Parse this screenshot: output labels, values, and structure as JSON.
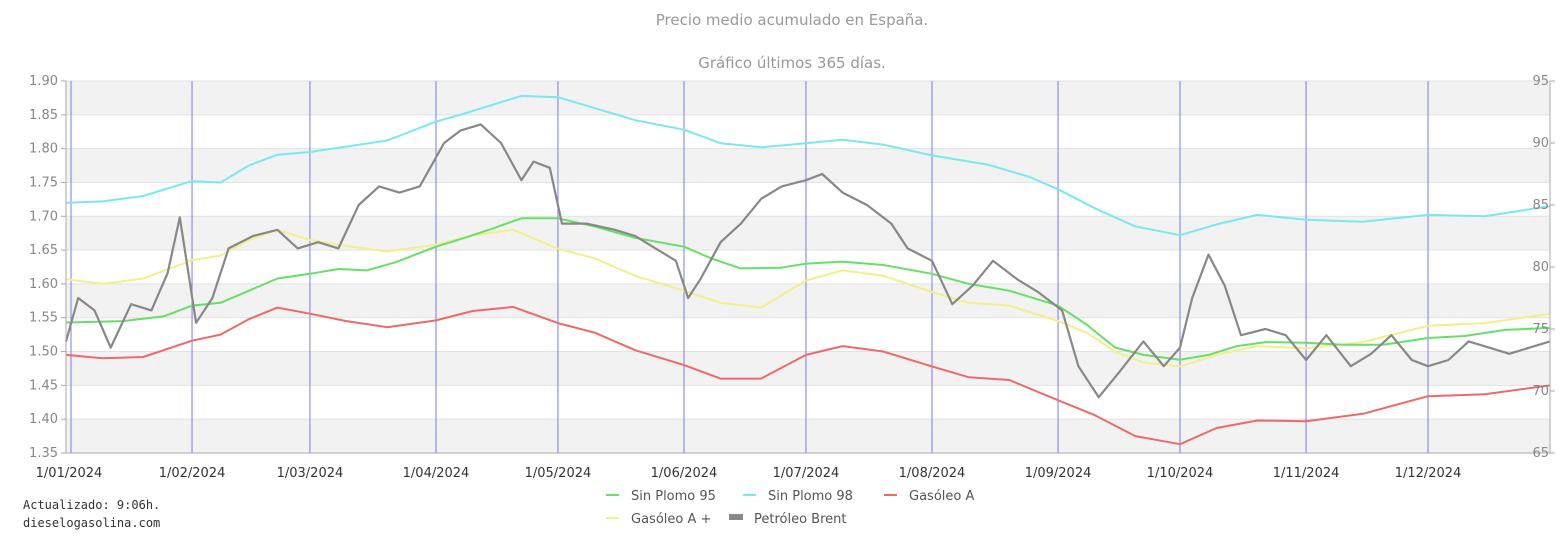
{
  "chart_data": {
    "type": "line",
    "title": "Precio medio acumulado en España.",
    "subtitle": "Gráfico últimos 365 días.",
    "y_left": {
      "min": 1.35,
      "max": 1.9,
      "step": 0.05,
      "ticks": [
        "1.35",
        "1.40",
        "1.45",
        "1.50",
        "1.55",
        "1.60",
        "1.65",
        "1.70",
        "1.75",
        "1.80",
        "1.85",
        "1.90"
      ]
    },
    "y_right": {
      "min": 65,
      "max": 95,
      "step": 5,
      "ticks": [
        "65",
        "70",
        "75",
        "80",
        "85",
        "90",
        "95"
      ]
    },
    "x": {
      "start": "2024-01-01",
      "end": "2024-12-31",
      "ticks": [
        {
          "label": "1/01/2024",
          "date": "2024-01-01"
        },
        {
          "label": "1/02/2024",
          "date": "2024-02-01"
        },
        {
          "label": "1/03/2024",
          "date": "2024-03-01"
        },
        {
          "label": "1/04/2024",
          "date": "2024-04-01"
        },
        {
          "label": "1/05/2024",
          "date": "2024-05-01"
        },
        {
          "label": "1/06/2024",
          "date": "2024-06-01"
        },
        {
          "label": "1/07/2024",
          "date": "2024-07-01"
        },
        {
          "label": "1/08/2024",
          "date": "2024-08-01"
        },
        {
          "label": "1/09/2024",
          "date": "2024-09-01"
        },
        {
          "label": "1/10/2024",
          "date": "2024-10-01"
        },
        {
          "label": "1/11/2024",
          "date": "2024-11-01"
        },
        {
          "label": "1/12/2024",
          "date": "2024-12-01"
        }
      ]
    },
    "grid": true,
    "legend_position": "bottom",
    "series": [
      {
        "name": "Sin Plomo 95",
        "color": "#66e066",
        "axis": "left",
        "points": [
          [
            "2024-01-01",
            1.543
          ],
          [
            "2024-01-15",
            1.545
          ],
          [
            "2024-01-25",
            1.552
          ],
          [
            "2024-02-01",
            1.568
          ],
          [
            "2024-02-08",
            1.572
          ],
          [
            "2024-02-15",
            1.59
          ],
          [
            "2024-02-22",
            1.608
          ],
          [
            "2024-03-01",
            1.615
          ],
          [
            "2024-03-08",
            1.622
          ],
          [
            "2024-03-15",
            1.62
          ],
          [
            "2024-03-22",
            1.632
          ],
          [
            "2024-04-01",
            1.655
          ],
          [
            "2024-04-08",
            1.668
          ],
          [
            "2024-04-15",
            1.682
          ],
          [
            "2024-04-22",
            1.697
          ],
          [
            "2024-05-01",
            1.697
          ],
          [
            "2024-05-10",
            1.685
          ],
          [
            "2024-05-20",
            1.668
          ],
          [
            "2024-06-01",
            1.655
          ],
          [
            "2024-06-08",
            1.637
          ],
          [
            "2024-06-15",
            1.623
          ],
          [
            "2024-06-25",
            1.624
          ],
          [
            "2024-07-01",
            1.63
          ],
          [
            "2024-07-10",
            1.633
          ],
          [
            "2024-07-20",
            1.628
          ],
          [
            "2024-08-01",
            1.615
          ],
          [
            "2024-08-10",
            1.6
          ],
          [
            "2024-08-20",
            1.59
          ],
          [
            "2024-09-01",
            1.568
          ],
          [
            "2024-09-08",
            1.54
          ],
          [
            "2024-09-15",
            1.506
          ],
          [
            "2024-09-22",
            1.495
          ],
          [
            "2024-10-01",
            1.488
          ],
          [
            "2024-10-08",
            1.495
          ],
          [
            "2024-10-15",
            1.508
          ],
          [
            "2024-10-22",
            1.514
          ],
          [
            "2024-11-01",
            1.513
          ],
          [
            "2024-11-10",
            1.51
          ],
          [
            "2024-11-20",
            1.51
          ],
          [
            "2024-12-01",
            1.52
          ],
          [
            "2024-12-10",
            1.523
          ],
          [
            "2024-12-20",
            1.532
          ],
          [
            "2024-12-31",
            1.535
          ]
        ]
      },
      {
        "name": "Sin Plomo 98",
        "color": "#7ae8f0",
        "axis": "left",
        "points": [
          [
            "2024-01-01",
            1.72
          ],
          [
            "2024-01-10",
            1.722
          ],
          [
            "2024-01-20",
            1.73
          ],
          [
            "2024-02-01",
            1.752
          ],
          [
            "2024-02-08",
            1.75
          ],
          [
            "2024-02-15",
            1.775
          ],
          [
            "2024-02-22",
            1.791
          ],
          [
            "2024-03-01",
            1.795
          ],
          [
            "2024-03-10",
            1.803
          ],
          [
            "2024-03-20",
            1.812
          ],
          [
            "2024-04-01",
            1.84
          ],
          [
            "2024-04-08",
            1.852
          ],
          [
            "2024-04-15",
            1.865
          ],
          [
            "2024-04-22",
            1.878
          ],
          [
            "2024-05-01",
            1.876
          ],
          [
            "2024-05-10",
            1.86
          ],
          [
            "2024-05-20",
            1.842
          ],
          [
            "2024-06-01",
            1.828
          ],
          [
            "2024-06-10",
            1.808
          ],
          [
            "2024-06-20",
            1.802
          ],
          [
            "2024-07-01",
            1.808
          ],
          [
            "2024-07-10",
            1.813
          ],
          [
            "2024-07-20",
            1.806
          ],
          [
            "2024-08-01",
            1.79
          ],
          [
            "2024-08-15",
            1.776
          ],
          [
            "2024-08-25",
            1.758
          ],
          [
            "2024-09-01",
            1.74
          ],
          [
            "2024-09-10",
            1.712
          ],
          [
            "2024-09-20",
            1.685
          ],
          [
            "2024-10-01",
            1.672
          ],
          [
            "2024-10-10",
            1.688
          ],
          [
            "2024-10-20",
            1.702
          ],
          [
            "2024-11-01",
            1.695
          ],
          [
            "2024-11-15",
            1.692
          ],
          [
            "2024-12-01",
            1.702
          ],
          [
            "2024-12-15",
            1.7
          ],
          [
            "2024-12-31",
            1.715
          ]
        ]
      },
      {
        "name": "Gasóleo A",
        "color": "#ee6a6a",
        "axis": "left",
        "points": [
          [
            "2024-01-01",
            1.495
          ],
          [
            "2024-01-10",
            1.49
          ],
          [
            "2024-01-20",
            1.492
          ],
          [
            "2024-02-01",
            1.516
          ],
          [
            "2024-02-08",
            1.525
          ],
          [
            "2024-02-15",
            1.548
          ],
          [
            "2024-02-22",
            1.565
          ],
          [
            "2024-03-01",
            1.556
          ],
          [
            "2024-03-10",
            1.545
          ],
          [
            "2024-03-20",
            1.536
          ],
          [
            "2024-04-01",
            1.546
          ],
          [
            "2024-04-10",
            1.56
          ],
          [
            "2024-04-20",
            1.566
          ],
          [
            "2024-05-01",
            1.542
          ],
          [
            "2024-05-10",
            1.528
          ],
          [
            "2024-05-20",
            1.502
          ],
          [
            "2024-06-01",
            1.48
          ],
          [
            "2024-06-10",
            1.46
          ],
          [
            "2024-06-20",
            1.46
          ],
          [
            "2024-07-01",
            1.495
          ],
          [
            "2024-07-10",
            1.508
          ],
          [
            "2024-07-20",
            1.5
          ],
          [
            "2024-08-01",
            1.478
          ],
          [
            "2024-08-10",
            1.462
          ],
          [
            "2024-08-20",
            1.458
          ],
          [
            "2024-09-01",
            1.428
          ],
          [
            "2024-09-10",
            1.406
          ],
          [
            "2024-09-20",
            1.375
          ],
          [
            "2024-10-01",
            1.363
          ],
          [
            "2024-10-10",
            1.387
          ],
          [
            "2024-10-20",
            1.398
          ],
          [
            "2024-11-01",
            1.397
          ],
          [
            "2024-11-15",
            1.408
          ],
          [
            "2024-12-01",
            1.434
          ],
          [
            "2024-12-15",
            1.437
          ],
          [
            "2024-12-31",
            1.45
          ]
        ]
      },
      {
        "name": "Gasóleo A +",
        "color": "#f2f08a",
        "axis": "left",
        "points": [
          [
            "2024-01-01",
            1.607
          ],
          [
            "2024-01-10",
            1.6
          ],
          [
            "2024-01-20",
            1.608
          ],
          [
            "2024-02-01",
            1.635
          ],
          [
            "2024-02-08",
            1.642
          ],
          [
            "2024-02-15",
            1.665
          ],
          [
            "2024-02-22",
            1.68
          ],
          [
            "2024-03-01",
            1.665
          ],
          [
            "2024-03-10",
            1.656
          ],
          [
            "2024-03-20",
            1.648
          ],
          [
            "2024-04-01",
            1.658
          ],
          [
            "2024-04-10",
            1.672
          ],
          [
            "2024-04-20",
            1.68
          ],
          [
            "2024-05-01",
            1.652
          ],
          [
            "2024-05-10",
            1.638
          ],
          [
            "2024-05-20",
            1.612
          ],
          [
            "2024-06-01",
            1.59
          ],
          [
            "2024-06-10",
            1.572
          ],
          [
            "2024-06-20",
            1.565
          ],
          [
            "2024-07-01",
            1.605
          ],
          [
            "2024-07-10",
            1.62
          ],
          [
            "2024-07-20",
            1.612
          ],
          [
            "2024-08-01",
            1.588
          ],
          [
            "2024-08-10",
            1.572
          ],
          [
            "2024-08-20",
            1.568
          ],
          [
            "2024-09-01",
            1.545
          ],
          [
            "2024-09-08",
            1.528
          ],
          [
            "2024-09-15",
            1.5
          ],
          [
            "2024-09-22",
            1.484
          ],
          [
            "2024-10-01",
            1.478
          ],
          [
            "2024-10-10",
            1.495
          ],
          [
            "2024-10-20",
            1.508
          ],
          [
            "2024-11-01",
            1.505
          ],
          [
            "2024-11-15",
            1.514
          ],
          [
            "2024-12-01",
            1.538
          ],
          [
            "2024-12-15",
            1.542
          ],
          [
            "2024-12-31",
            1.556
          ]
        ]
      },
      {
        "name": "Petróleo Brent",
        "color": "#888888",
        "axis": "right",
        "points": [
          [
            "2024-01-01",
            74.0
          ],
          [
            "2024-01-04",
            77.5
          ],
          [
            "2024-01-08",
            76.5
          ],
          [
            "2024-01-12",
            73.5
          ],
          [
            "2024-01-17",
            77.0
          ],
          [
            "2024-01-22",
            76.5
          ],
          [
            "2024-01-26",
            79.5
          ],
          [
            "2024-01-29",
            84.0
          ],
          [
            "2024-02-02",
            75.5
          ],
          [
            "2024-02-06",
            77.5
          ],
          [
            "2024-02-10",
            81.5
          ],
          [
            "2024-02-16",
            82.5
          ],
          [
            "2024-02-22",
            83.0
          ],
          [
            "2024-02-27",
            81.5
          ],
          [
            "2024-03-03",
            82.0
          ],
          [
            "2024-03-08",
            81.5
          ],
          [
            "2024-03-13",
            85.0
          ],
          [
            "2024-03-18",
            86.5
          ],
          [
            "2024-03-23",
            86.0
          ],
          [
            "2024-03-28",
            86.5
          ],
          [
            "2024-04-03",
            90.0
          ],
          [
            "2024-04-07",
            91.0
          ],
          [
            "2024-04-12",
            91.5
          ],
          [
            "2024-04-17",
            90.0
          ],
          [
            "2024-04-22",
            87.0
          ],
          [
            "2024-04-25",
            88.5
          ],
          [
            "2024-04-29",
            88.0
          ],
          [
            "2024-05-02",
            83.5
          ],
          [
            "2024-05-08",
            83.5
          ],
          [
            "2024-05-15",
            83.0
          ],
          [
            "2024-05-20",
            82.5
          ],
          [
            "2024-05-25",
            81.5
          ],
          [
            "2024-05-30",
            80.5
          ],
          [
            "2024-06-02",
            77.5
          ],
          [
            "2024-06-05",
            79.0
          ],
          [
            "2024-06-10",
            82.0
          ],
          [
            "2024-06-15",
            83.5
          ],
          [
            "2024-06-20",
            85.5
          ],
          [
            "2024-06-25",
            86.5
          ],
          [
            "2024-07-01",
            87.0
          ],
          [
            "2024-07-05",
            87.5
          ],
          [
            "2024-07-10",
            86.0
          ],
          [
            "2024-07-16",
            85.0
          ],
          [
            "2024-07-22",
            83.5
          ],
          [
            "2024-07-26",
            81.5
          ],
          [
            "2024-08-01",
            80.5
          ],
          [
            "2024-08-06",
            77.0
          ],
          [
            "2024-08-11",
            78.5
          ],
          [
            "2024-08-16",
            80.5
          ],
          [
            "2024-08-22",
            79.0
          ],
          [
            "2024-08-27",
            78.0
          ],
          [
            "2024-09-02",
            76.5
          ],
          [
            "2024-09-06",
            72.0
          ],
          [
            "2024-09-11",
            69.5
          ],
          [
            "2024-09-16",
            71.5
          ],
          [
            "2024-09-22",
            74.0
          ],
          [
            "2024-09-27",
            72.0
          ],
          [
            "2024-10-01",
            73.5
          ],
          [
            "2024-10-04",
            77.5
          ],
          [
            "2024-10-08",
            81.0
          ],
          [
            "2024-10-12",
            78.5
          ],
          [
            "2024-10-16",
            74.5
          ],
          [
            "2024-10-22",
            75.0
          ],
          [
            "2024-10-27",
            74.5
          ],
          [
            "2024-11-01",
            72.5
          ],
          [
            "2024-11-06",
            74.5
          ],
          [
            "2024-11-12",
            72.0
          ],
          [
            "2024-11-17",
            73.0
          ],
          [
            "2024-11-22",
            74.5
          ],
          [
            "2024-11-27",
            72.5
          ],
          [
            "2024-12-01",
            72.0
          ],
          [
            "2024-12-06",
            72.5
          ],
          [
            "2024-12-11",
            74.0
          ],
          [
            "2024-12-16",
            73.5
          ],
          [
            "2024-12-21",
            73.0
          ],
          [
            "2024-12-26",
            73.5
          ],
          [
            "2024-12-31",
            74.0
          ]
        ]
      }
    ]
  },
  "footer": {
    "updated": "Actualizado: 9:06h.",
    "site": "dieselogasolina.com"
  }
}
